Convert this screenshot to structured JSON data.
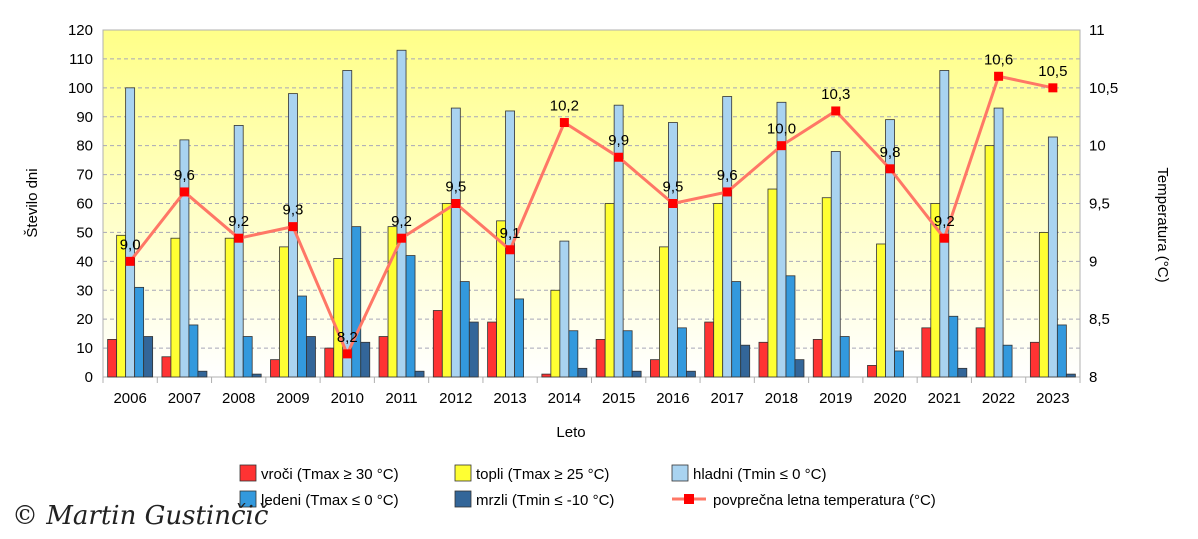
{
  "chart_data": {
    "type": "bar",
    "xlabel": "Leto",
    "ylabel": "Število dni",
    "y2label": "Temperatura (°C)",
    "ylim": [
      0,
      120
    ],
    "y2lim": [
      8,
      11
    ],
    "yticks": [
      0,
      10,
      20,
      30,
      40,
      50,
      60,
      70,
      80,
      90,
      100,
      110,
      120
    ],
    "y2ticks": [
      "8",
      "8,5",
      "9",
      "9,5",
      "10",
      "10,5",
      "11"
    ],
    "y2tick_values": [
      8,
      8.5,
      9,
      9.5,
      10,
      10.5,
      11
    ],
    "grid": true,
    "legend_position": "bottom",
    "categories": [
      "2006",
      "2007",
      "2008",
      "2009",
      "2010",
      "2011",
      "2012",
      "2013",
      "2014",
      "2015",
      "2016",
      "2017",
      "2018",
      "2019",
      "2020",
      "2021",
      "2022",
      "2023"
    ],
    "series": [
      {
        "name": "vroči (Tmax ≥ 30 °C)",
        "color": "#ff3333",
        "values": [
          13,
          7,
          0,
          6,
          10,
          14,
          23,
          19,
          1,
          13,
          6,
          19,
          12,
          13,
          4,
          17,
          17,
          12
        ]
      },
      {
        "name": "topli (Tmax ≥ 25 °C)",
        "color": "#ffff33",
        "values": [
          49,
          48,
          48,
          45,
          41,
          52,
          60,
          54,
          30,
          60,
          45,
          60,
          65,
          62,
          46,
          60,
          80,
          50
        ]
      },
      {
        "name": "hladni (Tmin ≤ 0 °C)",
        "color": "#a9d3f0",
        "values": [
          100,
          82,
          87,
          98,
          106,
          113,
          93,
          92,
          47,
          94,
          88,
          97,
          95,
          78,
          89,
          106,
          93,
          83
        ]
      },
      {
        "name": "ledeni (Tmax ≤ 0 °C)",
        "color": "#3399dd",
        "values": [
          31,
          18,
          14,
          28,
          52,
          42,
          33,
          27,
          16,
          16,
          17,
          33,
          35,
          14,
          9,
          21,
          11,
          18
        ]
      },
      {
        "name": "mrzli (Tmin ≤ -10 °C)",
        "color": "#336699",
        "values": [
          14,
          2,
          1,
          14,
          12,
          2,
          19,
          0,
          3,
          2,
          2,
          11,
          6,
          0,
          0,
          3,
          0,
          1
        ]
      }
    ],
    "line_series": {
      "name": "povprečna letna temperatura (°C)",
      "color": "#ff7766",
      "marker_color": "#ff0000",
      "axis": "right",
      "values": [
        9.0,
        9.6,
        9.2,
        9.3,
        8.2,
        9.2,
        9.5,
        9.1,
        10.2,
        9.9,
        9.5,
        9.6,
        10.0,
        10.3,
        9.8,
        9.2,
        10.6,
        10.5
      ],
      "labels": [
        "9,0",
        "9,6",
        "9,2",
        "9,3",
        "8,2",
        "9,2",
        "9,5",
        "9,1",
        "10,2",
        "9,9",
        "9,5",
        "9,6",
        "10,0",
        "10,3",
        "9,8",
        "9,2",
        "10,6",
        "10,5"
      ]
    }
  },
  "watermark": "© Martin Gustinčič"
}
